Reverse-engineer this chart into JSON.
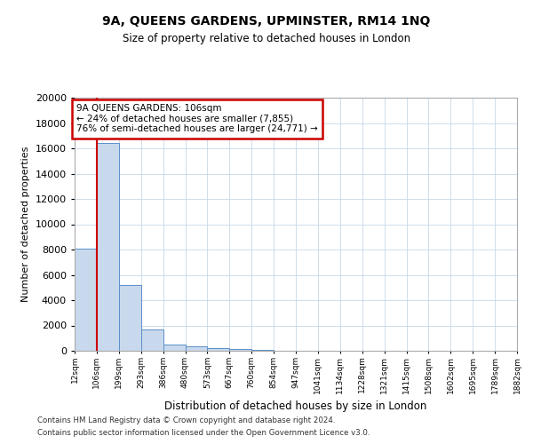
{
  "title_line1": "9A, QUEENS GARDENS, UPMINSTER, RM14 1NQ",
  "title_line2": "Size of property relative to detached houses in London",
  "xlabel": "Distribution of detached houses by size in London",
  "ylabel": "Number of detached properties",
  "annotation_line1": "9A QUEENS GARDENS: 106sqm",
  "annotation_line2": "← 24% of detached houses are smaller (7,855)",
  "annotation_line3": "76% of semi-detached houses are larger (24,771) →",
  "footer_line1": "Contains HM Land Registry data © Crown copyright and database right 2024.",
  "footer_line2": "Contains public sector information licensed under the Open Government Licence v3.0.",
  "bin_labels": [
    "12sqm",
    "106sqm",
    "199sqm",
    "293sqm",
    "386sqm",
    "480sqm",
    "573sqm",
    "667sqm",
    "760sqm",
    "854sqm",
    "947sqm",
    "1041sqm",
    "1134sqm",
    "1228sqm",
    "1321sqm",
    "1415sqm",
    "1508sqm",
    "1602sqm",
    "1695sqm",
    "1789sqm",
    "1882sqm"
  ],
  "bar_heights": [
    8050,
    16400,
    5200,
    1700,
    500,
    330,
    220,
    150,
    100,
    0,
    0,
    0,
    0,
    0,
    0,
    0,
    0,
    0,
    0,
    0
  ],
  "red_line_index": 1,
  "bar_color": "#c9d9ed",
  "bar_edge_color": "#5b8fc9",
  "red_line_color": "#cc0000",
  "annotation_box_color": "#cc0000",
  "ylim": [
    0,
    20000
  ],
  "yticks": [
    0,
    2000,
    4000,
    6000,
    8000,
    10000,
    12000,
    14000,
    16000,
    18000,
    20000
  ],
  "grid_color": "#c8d8e8",
  "background_color": "#ffffff"
}
